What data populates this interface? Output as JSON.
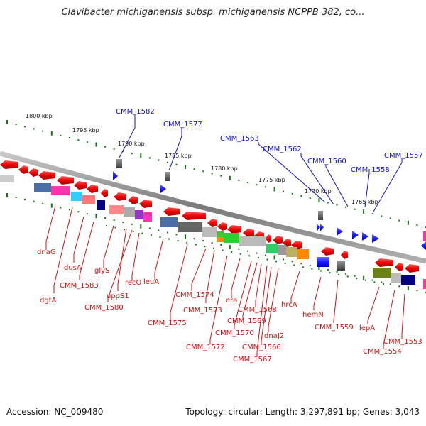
{
  "title": "Clavibacter michiganensis subsp. michiganensis NCPPB 382, co...",
  "accession_text": "Accession: NC_009480",
  "summary_text": "Topology: circular; Length: 3,297,891 bp; Genes: 3,043",
  "scale_labels": [
    "1800 kbp",
    "1795 kbp",
    "1790 kbp",
    "1785 kbp",
    "1780 kbp",
    "1775 kbp",
    "1770 kbp",
    "1765 kbp"
  ],
  "upper_gene_labels": [
    "CMM_1582",
    "CMM_1577",
    "CMM_1563",
    "CMM_1562",
    "CMM_1560",
    "CMM_1558",
    "CMM_1557"
  ],
  "lower_gene_labels": [
    "dnaG",
    "dgtA",
    "dusA",
    "CMM_1583",
    "glyS",
    "uppS1",
    "CMM_1580",
    "recO",
    "leuA",
    "CMM_1575",
    "CMM_1574",
    "CMM_1573",
    "CMM_1572",
    "era",
    "CMM_1570",
    "CMM_1569",
    "CMM_1568",
    "CMM_1567",
    "CMM_1566",
    "dnaJ2",
    "hrcA",
    "hemN",
    "CMM_1559",
    "lepA",
    "CMM_1554",
    "CMM_1553"
  ],
  "colors": {
    "backbone": "#8c8c8c",
    "tick": "#117711",
    "forward_gene": "#ff0000",
    "orf": "#1a1aff",
    "upper_label": "#1010d0",
    "lower_label": "#d01010"
  }
}
